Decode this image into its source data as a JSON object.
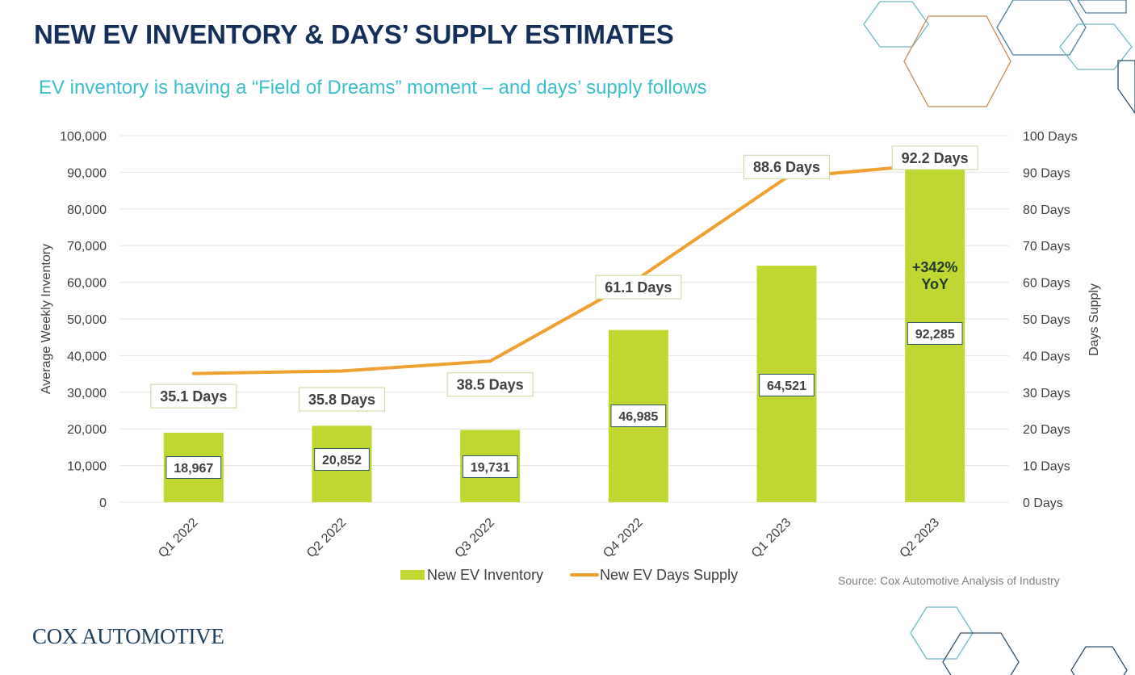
{
  "header": {
    "title": "NEW EV INVENTORY & DAYS’ SUPPLY ESTIMATES",
    "subtitle": "EV inventory is having a “Field of Dreams” moment – and days’ supply follows"
  },
  "colors": {
    "title": "#14305a",
    "subtitle": "#3bbfcf",
    "bar": "#c0d631",
    "line": "#f0a030",
    "grid": "#e6e6e6",
    "axis_text": "#404040"
  },
  "chart_data": {
    "type": "bar",
    "categories": [
      "Q1 2022",
      "Q2 2022",
      "Q3 2022",
      "Q4 2022",
      "Q1 2023",
      "Q2 2023"
    ],
    "series": [
      {
        "name": "New EV Inventory",
        "type": "bar",
        "axis": "left",
        "values": [
          18967,
          20852,
          19731,
          46985,
          64521,
          92285
        ],
        "labels": [
          "18,967",
          "20,852",
          "19,731",
          "46,985",
          "64,521",
          "92,285"
        ]
      },
      {
        "name": "New EV Days Supply",
        "type": "line",
        "axis": "right",
        "values": [
          35.1,
          35.8,
          38.5,
          61.1,
          88.6,
          92.2
        ],
        "labels": [
          "35.1 Days",
          "35.8 Days",
          "38.5 Days",
          "61.1 Days",
          "88.6 Days",
          "92.2 Days"
        ]
      }
    ],
    "ylabel": "Average Weekly Inventory",
    "y2label": "Days Supply",
    "ylim": [
      0,
      100000
    ],
    "y2lim": [
      0,
      100
    ],
    "yticks": [
      "0",
      "10,000",
      "20,000",
      "30,000",
      "40,000",
      "50,000",
      "60,000",
      "70,000",
      "80,000",
      "90,000",
      "100,000"
    ],
    "y2ticks": [
      "0 Days",
      "10 Days",
      "20 Days",
      "30 Days",
      "40 Days",
      "50 Days",
      "60 Days",
      "70 Days",
      "80 Days",
      "90 Days",
      "100 Days"
    ],
    "grid": true,
    "legend": "bottom",
    "annotation": {
      "line1": "+342%",
      "line2": "YoY"
    }
  },
  "footer": {
    "source": "Source: Cox Automotive Analysis of Industry",
    "logo_text": "COX AUTOMOTIVE"
  }
}
